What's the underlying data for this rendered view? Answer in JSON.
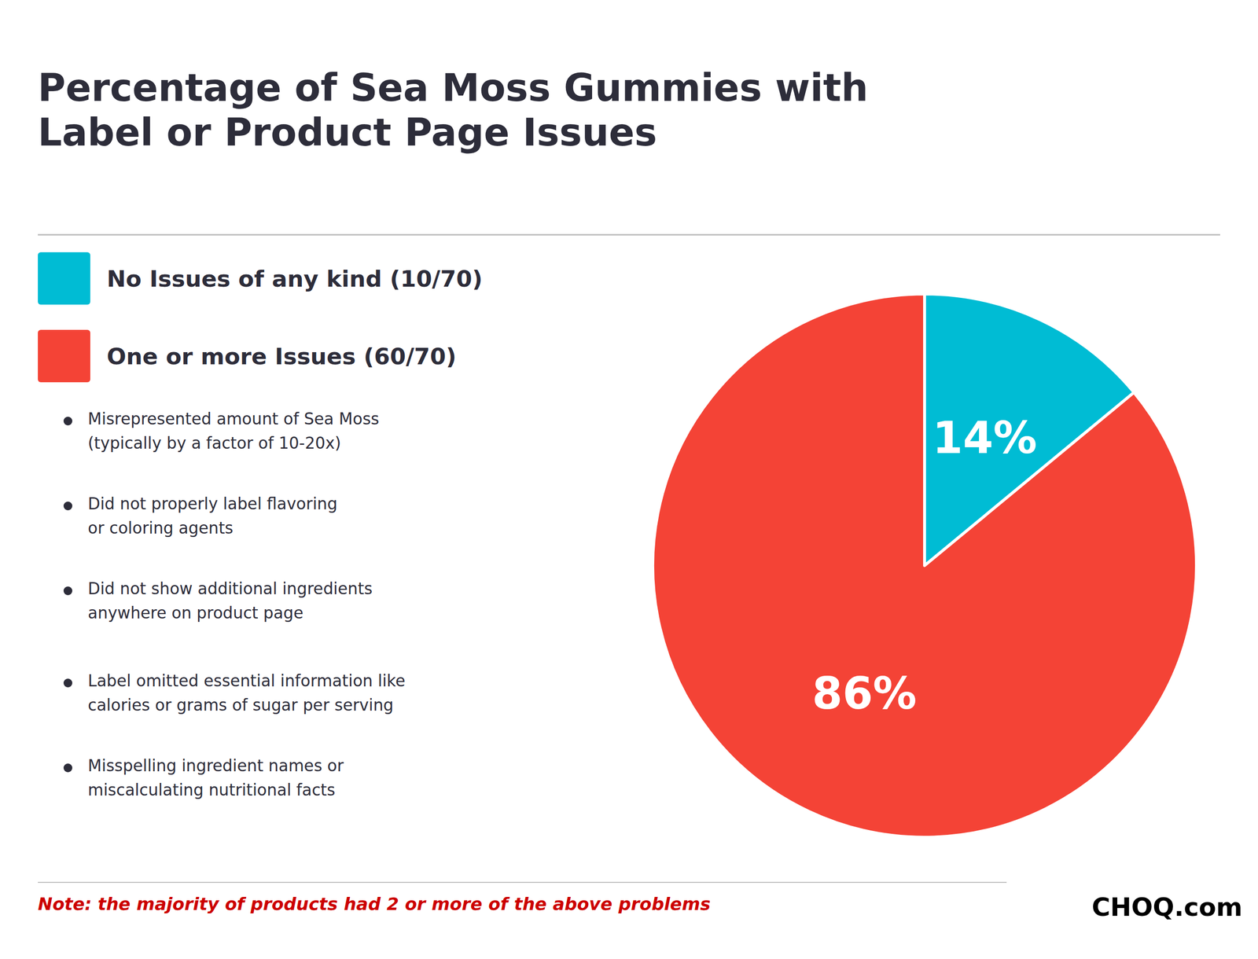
{
  "chart_data": {
    "type": "pie",
    "title": "Percentage of Sea Moss Gummies with\nLabel or Product Page Issues",
    "categories": [
      "No Issues of any kind (10/70)",
      "One or more Issues (60/70)"
    ],
    "values": [
      14,
      86
    ],
    "value_labels": [
      "14%",
      "86%"
    ],
    "data_labels": true,
    "colors": [
      "#00bcd4",
      "#f44336"
    ],
    "legend": "upper left",
    "annotations": [
      "Misrepresented amount of Sea Moss\n(typically by a factor of 10-20x)",
      "Did not properly label flavoring\nor coloring agents",
      "Did not show additional ingredients\nanywhere on product page",
      "Label omitted essential information like\ncalories or grams of sugar per serving",
      "Misspelling ingredient names or\nmiscalculating nutritional facts"
    ],
    "note": "Note: the majority of products had 2 or more of the above problems",
    "logo": "CHOQ.com"
  }
}
